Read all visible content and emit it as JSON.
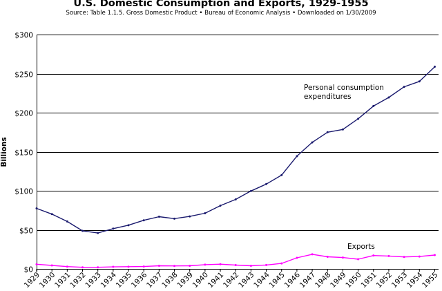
{
  "chart_data": {
    "type": "line",
    "title": "U.S. Domestic Consumption and Exports, 1929-1955",
    "subtitle": "Source: Table 1.1.5. Gross Domestic Product • Bureau of Economic Analysis • Downloaded on 1/30/2009",
    "ylabel": "Billions",
    "xlabel": "",
    "ylim": [
      0,
      300
    ],
    "yticks": [
      0,
      50,
      100,
      150,
      200,
      250,
      300
    ],
    "ytick_labels": [
      "$0",
      "$50",
      "$100",
      "$150",
      "$200",
      "$250",
      "$300"
    ],
    "grid": true,
    "categories": [
      "1929",
      "1930",
      "1931",
      "1932",
      "1933",
      "1934",
      "1935",
      "1936",
      "1937",
      "1938",
      "1939",
      "1940",
      "1941",
      "1942",
      "1943",
      "1944",
      "1945",
      "1946",
      "1947",
      "1948",
      "1949",
      "1950",
      "1951",
      "1952",
      "1953",
      "1954",
      "1955"
    ],
    "series": [
      {
        "name": "Personal consumption expenditures",
        "label_lines": [
          "Personal consumption",
          "expenditures"
        ],
        "color": "#1a1a6e",
        "values": [
          77.4,
          70.1,
          60.7,
          48.7,
          45.9,
          51.5,
          55.9,
          62.2,
          66.8,
          64.3,
          67.2,
          71.2,
          81.0,
          88.9,
          99.7,
          108.6,
          120.0,
          144.3,
          162.0,
          175.0,
          178.5,
          192.2,
          208.5,
          219.5,
          233.1,
          240.0,
          258.8
        ]
      },
      {
        "name": "Exports",
        "label_lines": [
          "Exports"
        ],
        "color": "#ff00ff",
        "values": [
          5.9,
          4.4,
          2.9,
          2.0,
          2.0,
          2.6,
          2.8,
          3.0,
          4.0,
          3.8,
          4.0,
          5.4,
          6.0,
          4.9,
          4.0,
          5.0,
          7.0,
          14.2,
          18.7,
          15.5,
          14.5,
          12.4,
          17.1,
          16.5,
          15.3,
          15.8,
          17.7
        ]
      }
    ]
  }
}
